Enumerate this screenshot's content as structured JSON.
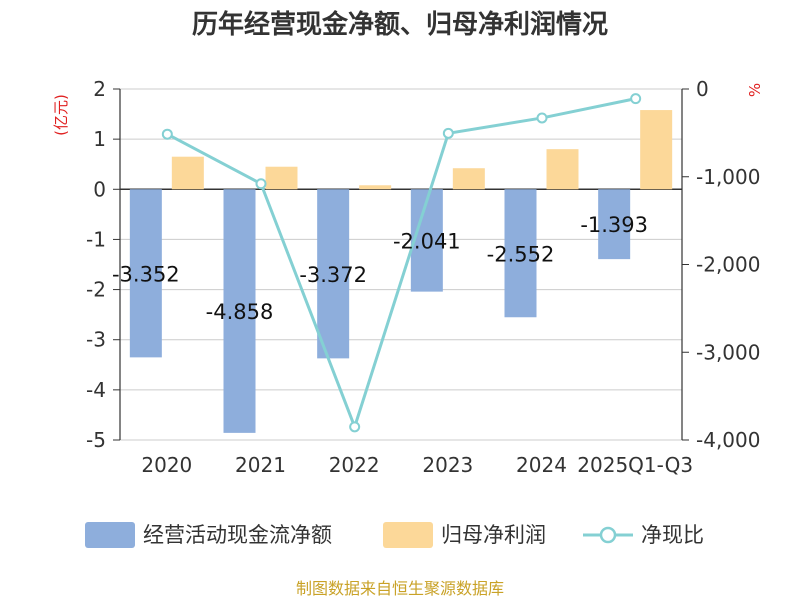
{
  "chart_data": {
    "type": "bar",
    "title": "历年经营现金净额、归母净利润情况",
    "categories": [
      "2020",
      "2021",
      "2022",
      "2023",
      "2024",
      "2025Q1-Q3"
    ],
    "series": [
      {
        "name": "经营活动现金流净额",
        "type": "bar",
        "axis": "left",
        "values": [
          -3.352,
          -4.858,
          -3.372,
          -2.041,
          -2.552,
          -1.393
        ],
        "labels": [
          "-3.352",
          "-4.858",
          "-3.372",
          "-2.041",
          "-2.552",
          "-1.393"
        ],
        "color": "#8eaedc"
      },
      {
        "name": "归母净利润",
        "type": "bar",
        "axis": "left",
        "values": [
          0.65,
          0.45,
          0.08,
          0.42,
          0.8,
          1.58
        ],
        "color": "#fcd899"
      },
      {
        "name": "净现比",
        "type": "line",
        "axis": "right",
        "values": [
          -515,
          -1080,
          -3850,
          -505,
          -330,
          -110
        ],
        "color": "#84d0d3"
      }
    ],
    "left_axis": {
      "unit": "(亿元)",
      "min": -5,
      "max": 2,
      "ticks": [
        "2",
        "1",
        "0",
        "-1",
        "-2",
        "-3",
        "-4",
        "-5"
      ]
    },
    "right_axis": {
      "unit": "%",
      "min": -4000,
      "max": 0,
      "ticks": [
        "0",
        "-1,000",
        "-2,000",
        "-3,000",
        "-4,000"
      ]
    },
    "grid": true,
    "legend_position": "bottom"
  },
  "source": "制图数据来自恒生聚源数据库"
}
